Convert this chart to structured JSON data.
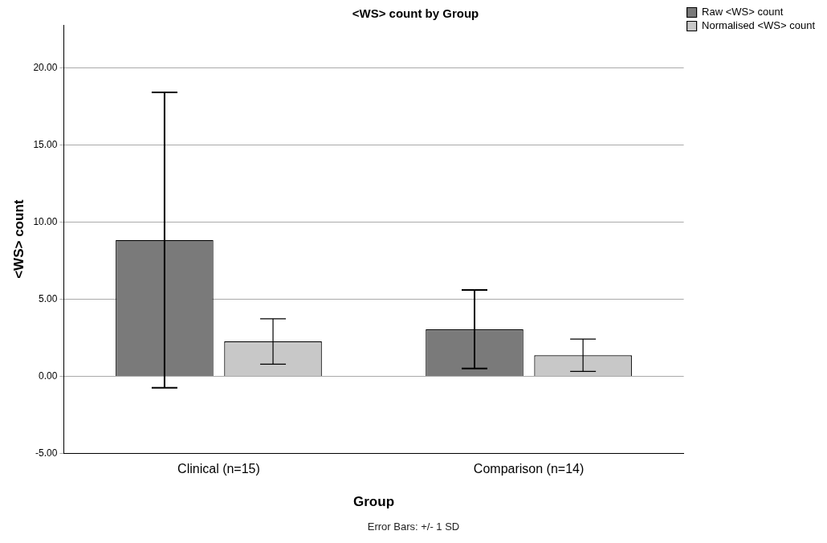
{
  "chart_data": {
    "type": "bar",
    "title": "<WS> count by Group",
    "xlabel": "Group",
    "ylabel": "<WS> count",
    "categories": [
      "Clinical (n=15)",
      "Comparison (n=14)"
    ],
    "series": [
      {
        "name": "Raw <WS> count",
        "color": "#7a7a7a",
        "values": [
          8.84,
          3.05
        ],
        "errors": [
          9.58,
          2.55
        ]
      },
      {
        "name": "Normalised <WS> count",
        "color": "#c8c8c8",
        "values": [
          2.26,
          1.37
        ],
        "errors": [
          1.47,
          1.05
        ]
      }
    ],
    "ylim": [
      -5,
      22.8
    ],
    "yticks": [
      {
        "value": -5,
        "label": "-5.00"
      },
      {
        "value": 0,
        "label": "0.00"
      },
      {
        "value": 5,
        "label": "5.00"
      },
      {
        "value": 10,
        "label": "10.00"
      },
      {
        "value": 15,
        "label": "15.00"
      },
      {
        "value": 20,
        "label": "20.00"
      }
    ],
    "grid": "y",
    "legend": "top right",
    "annotations": [
      "Error Bars: +/- 1 SD"
    ]
  }
}
